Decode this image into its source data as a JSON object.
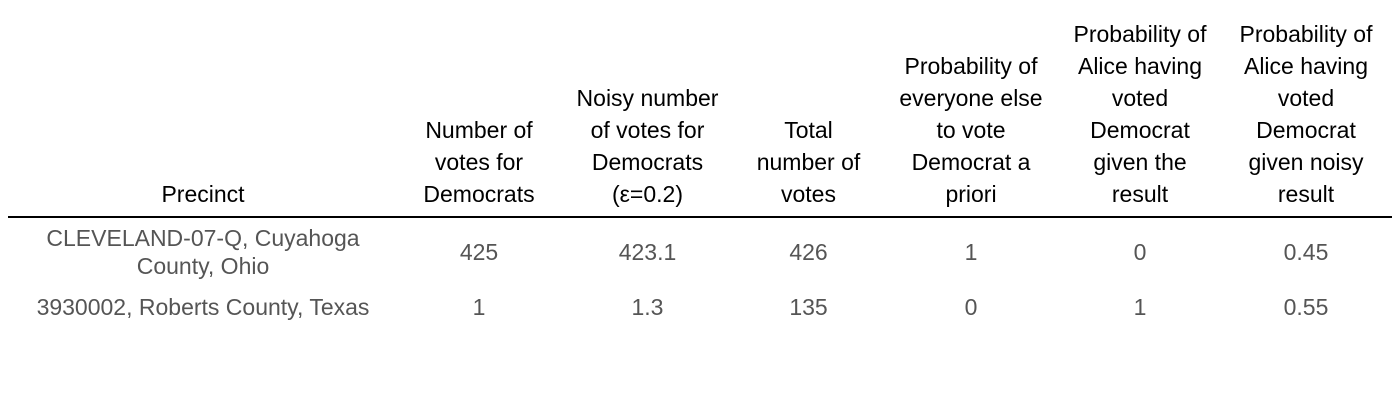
{
  "table": {
    "columns": [
      "Precinct",
      "Number of votes for Democrats",
      "Noisy number of votes for Democrats (ε=0.2)",
      "Total number of votes",
      "Probability of everyone else to vote Democrat a priori",
      "Probability of Alice having voted Democrat given the result",
      "Probability of Alice having voted Democrat given noisy result"
    ],
    "rows": [
      [
        "CLEVELAND-07-Q, Cuyahoga County, Ohio",
        425,
        423.1,
        426,
        1,
        0,
        0.45
      ],
      [
        "3930002, Roberts County, Texas",
        1,
        1.3,
        135,
        0,
        1,
        0.55
      ]
    ]
  }
}
